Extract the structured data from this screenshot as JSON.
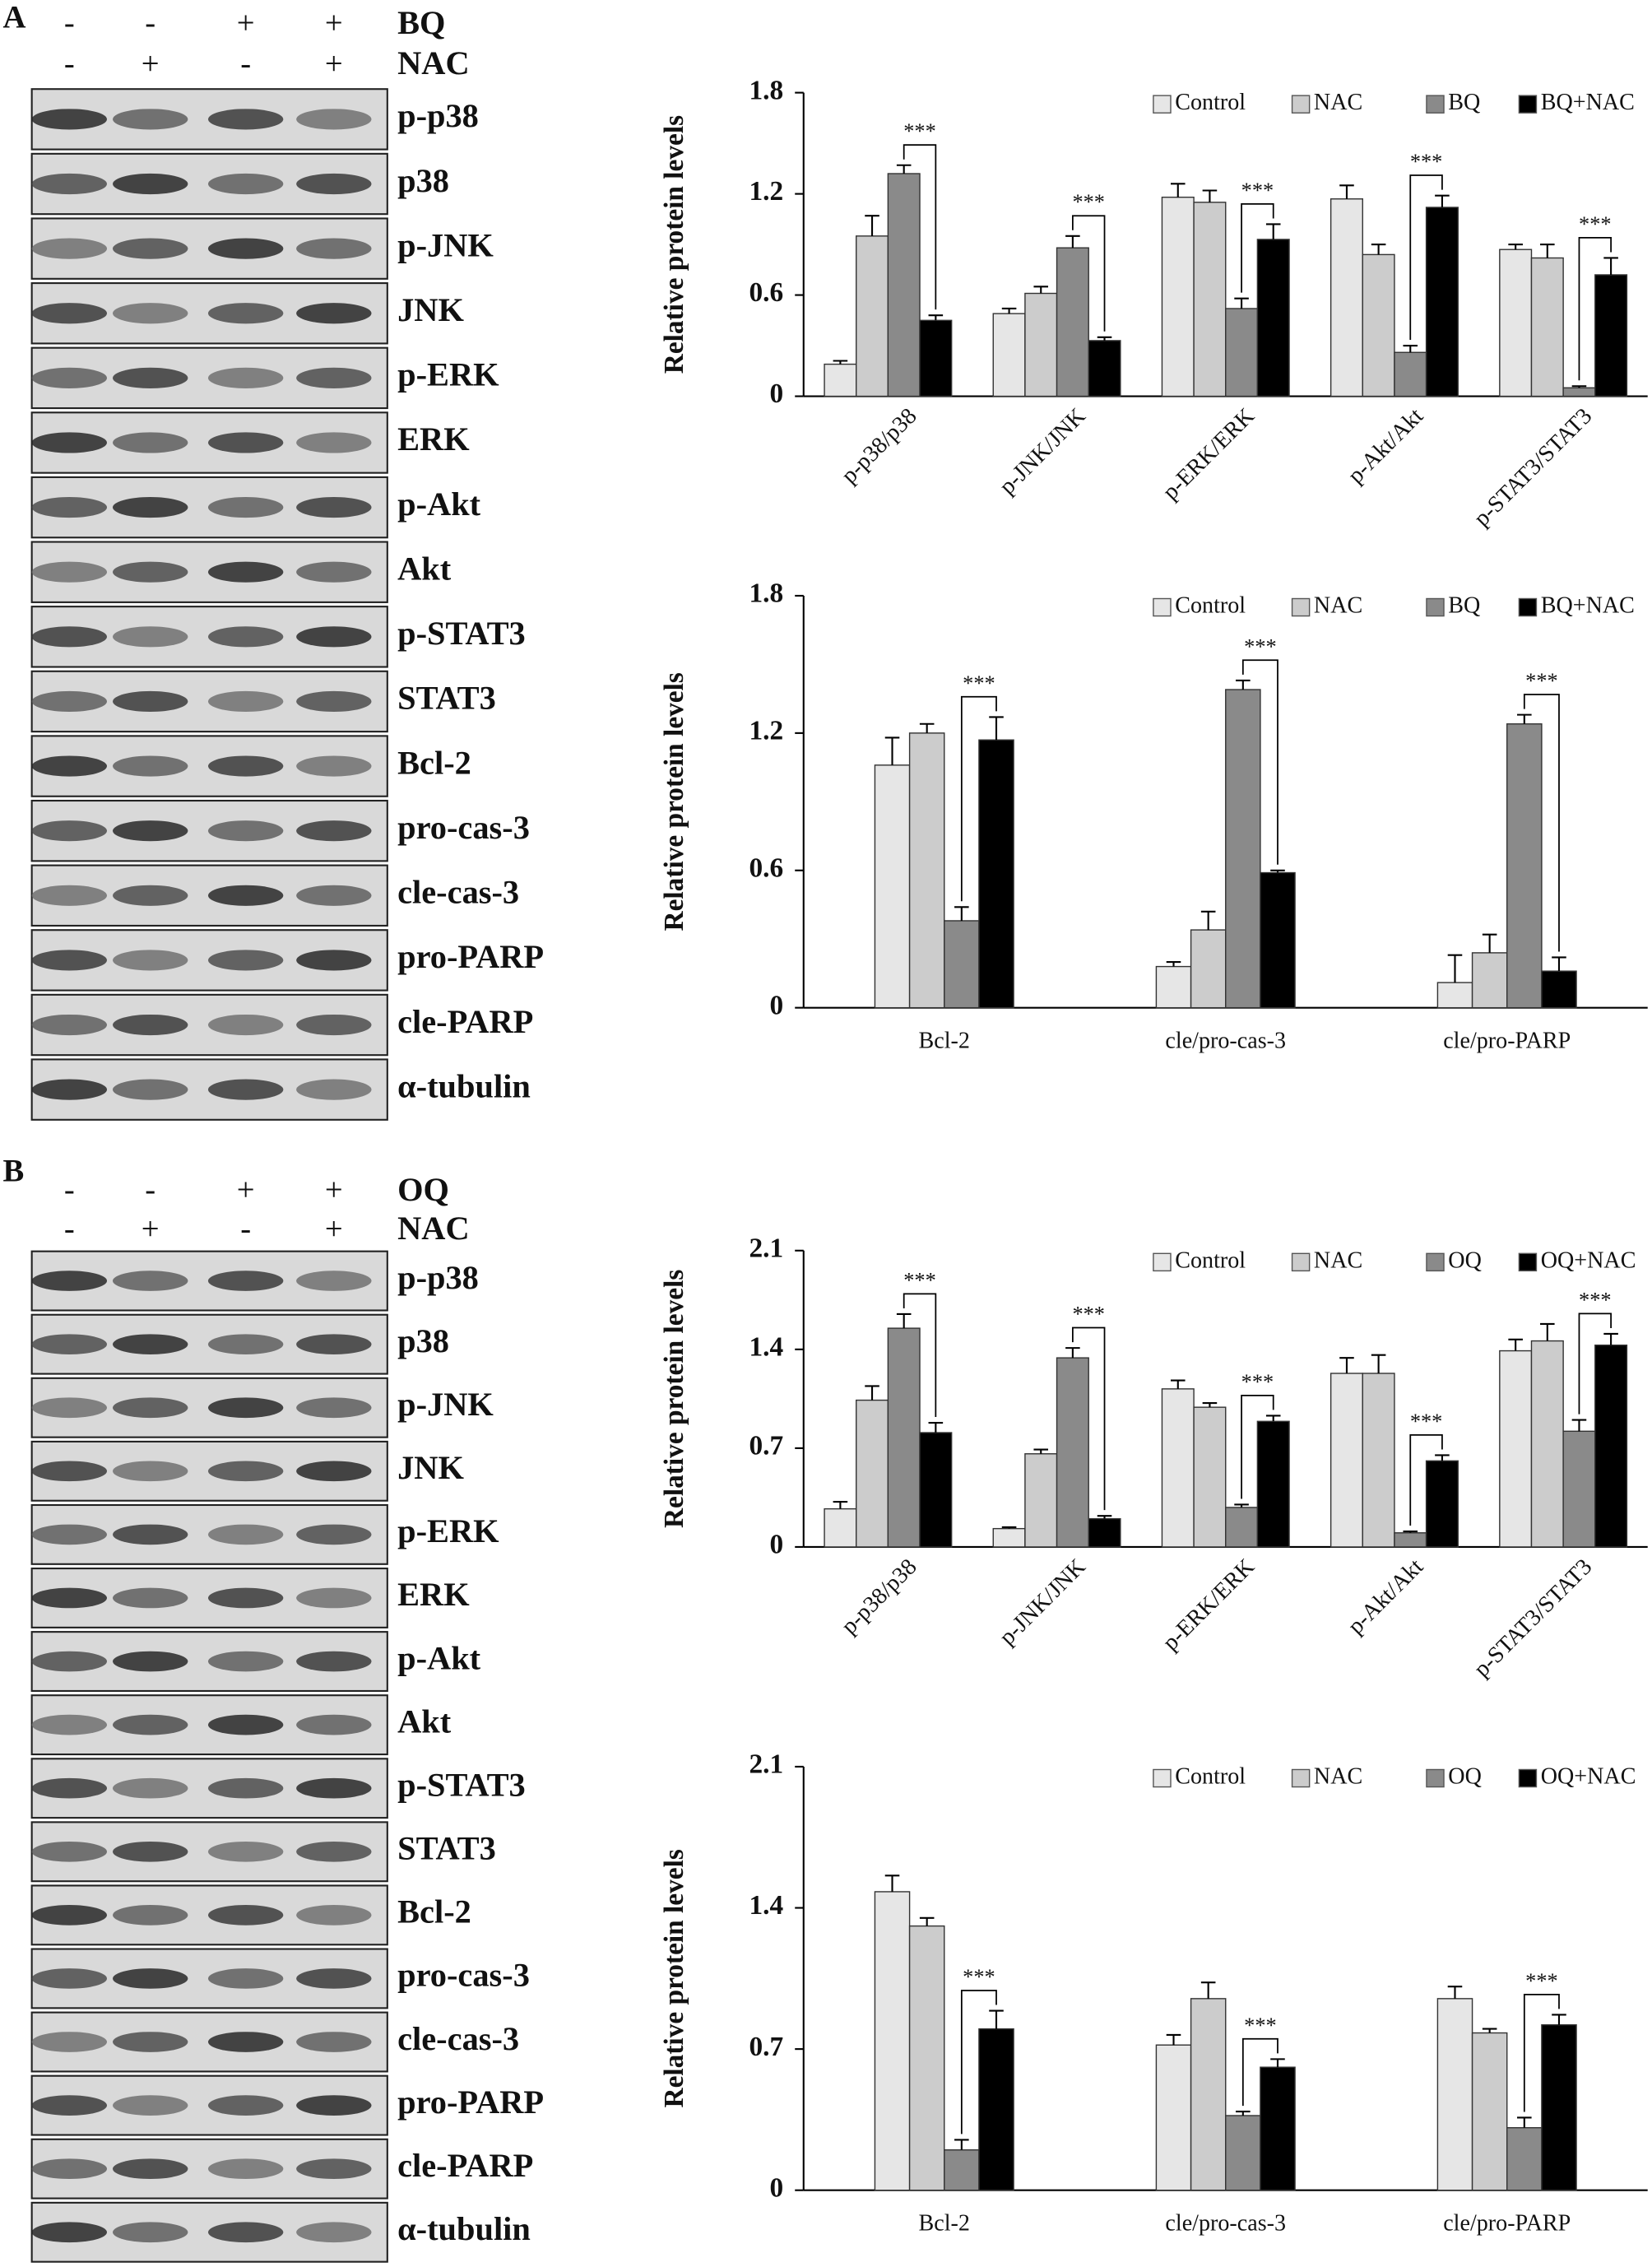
{
  "panels": [
    {
      "label": "A",
      "treatments": [
        {
          "name": "BQ",
          "signs": [
            "-",
            "-",
            "+",
            "+"
          ]
        },
        {
          "name": "NAC",
          "signs": [
            "-",
            "+",
            "-",
            "+"
          ]
        }
      ],
      "blots": [
        "p-p38",
        "p38",
        "p-JNK",
        "JNK",
        "p-ERK",
        "ERK",
        "p-Akt",
        "Akt",
        "p-STAT3",
        "STAT3",
        "Bcl-2",
        "pro-cas-3",
        "cle-cas-3",
        "pro-PARP",
        "cle-PARP",
        "α-tubulin"
      ]
    },
    {
      "label": "B",
      "treatments": [
        {
          "name": "OQ",
          "signs": [
            "-",
            "-",
            "+",
            "+"
          ]
        },
        {
          "name": "NAC",
          "signs": [
            "-",
            "+",
            "-",
            "+"
          ]
        }
      ],
      "blots": [
        "p-p38",
        "p38",
        "p-JNK",
        "JNK",
        "p-ERK",
        "ERK",
        "p-Akt",
        "Akt",
        "p-STAT3",
        "STAT3",
        "Bcl-2",
        "pro-cas-3",
        "cle-cas-3",
        "pro-PARP",
        "cle-PARP",
        "α-tubulin"
      ]
    }
  ],
  "chart_data": [
    {
      "type": "bar",
      "ylabel": "Relative protein levels",
      "ylim": [
        0,
        1.8
      ],
      "yticks": [
        0,
        0.6,
        1.2,
        1.8
      ],
      "grid": false,
      "legend": "top-right",
      "x_label_rotation": -45,
      "categories": [
        "p-p38/p38",
        "p-JNK/JNK",
        "p-ERK/ERK",
        "p-Akt/Akt",
        "p-STAT3/STAT3"
      ],
      "annotations": [
        "***",
        "***",
        "***",
        "***",
        "***"
      ],
      "series": [
        {
          "name": "Control",
          "color": "#e6e6e6",
          "values": [
            0.19,
            0.49,
            1.18,
            1.17,
            0.87
          ],
          "errors": [
            0.02,
            0.03,
            0.08,
            0.08,
            0.03
          ]
        },
        {
          "name": "NAC",
          "color": "#cccccc",
          "values": [
            0.95,
            0.61,
            1.15,
            0.84,
            0.82
          ],
          "errors": [
            0.12,
            0.04,
            0.07,
            0.06,
            0.08
          ]
        },
        {
          "name": "BQ",
          "color": "#8a8a8a",
          "values": [
            1.32,
            0.88,
            0.52,
            0.26,
            0.05
          ],
          "errors": [
            0.05,
            0.07,
            0.06,
            0.04,
            0.01
          ]
        },
        {
          "name": "BQ+NAC",
          "color": "#000000",
          "values": [
            0.45,
            0.33,
            0.93,
            1.12,
            0.72
          ],
          "errors": [
            0.03,
            0.02,
            0.09,
            0.07,
            0.1
          ]
        }
      ]
    },
    {
      "type": "bar",
      "ylabel": "Relative protein levels",
      "ylim": [
        0,
        1.8
      ],
      "yticks": [
        0,
        0.6,
        1.2,
        1.8
      ],
      "grid": false,
      "legend": "top-right",
      "x_label_rotation": 0,
      "categories": [
        "Bcl-2",
        "cle/pro-cas-3",
        "cle/pro-PARP"
      ],
      "annotations": [
        "***",
        "***",
        "***"
      ],
      "series": [
        {
          "name": "Control",
          "color": "#e6e6e6",
          "values": [
            1.06,
            0.18,
            0.11
          ],
          "errors": [
            0.12,
            0.02,
            0.12
          ]
        },
        {
          "name": "NAC",
          "color": "#cccccc",
          "values": [
            1.2,
            0.34,
            0.24
          ],
          "errors": [
            0.04,
            0.08,
            0.08
          ]
        },
        {
          "name": "BQ",
          "color": "#8a8a8a",
          "values": [
            0.38,
            1.39,
            1.24
          ],
          "errors": [
            0.06,
            0.04,
            0.04
          ]
        },
        {
          "name": "BQ+NAC",
          "color": "#000000",
          "values": [
            1.17,
            0.59,
            0.16
          ],
          "errors": [
            0.1,
            0.01,
            0.06
          ]
        }
      ]
    },
    {
      "type": "bar",
      "ylabel": "Relative protein levels",
      "ylim": [
        0,
        2.1
      ],
      "yticks": [
        0,
        0.7,
        1.4,
        2.1
      ],
      "grid": false,
      "legend": "top-right",
      "x_label_rotation": -45,
      "categories": [
        "p-p38/p38",
        "p-JNK/JNK",
        "p-ERK/ERK",
        "p-Akt/Akt",
        "p-STAT3/STAT3"
      ],
      "annotations": [
        "***",
        "***",
        "***",
        "***",
        "***"
      ],
      "series": [
        {
          "name": "Control",
          "color": "#e6e6e6",
          "values": [
            0.27,
            0.13,
            1.12,
            1.23,
            1.39
          ],
          "errors": [
            0.05,
            0.01,
            0.06,
            0.11,
            0.08
          ]
        },
        {
          "name": "NAC",
          "color": "#cccccc",
          "values": [
            1.04,
            0.66,
            0.99,
            1.23,
            1.46
          ],
          "errors": [
            0.1,
            0.03,
            0.03,
            0.13,
            0.12
          ]
        },
        {
          "name": "OQ",
          "color": "#8a8a8a",
          "values": [
            1.55,
            1.34,
            0.28,
            0.1,
            0.82
          ],
          "errors": [
            0.1,
            0.07,
            0.02,
            0.01,
            0.08
          ]
        },
        {
          "name": "OQ+NAC",
          "color": "#000000",
          "values": [
            0.81,
            0.2,
            0.89,
            0.61,
            1.43
          ],
          "errors": [
            0.07,
            0.02,
            0.04,
            0.04,
            0.08
          ]
        }
      ]
    },
    {
      "type": "bar",
      "ylabel": "Relative protein levels",
      "ylim": [
        0,
        2.1
      ],
      "yticks": [
        0,
        0.7,
        1.4,
        2.1
      ],
      "grid": false,
      "legend": "top-right",
      "x_label_rotation": 0,
      "categories": [
        "Bcl-2",
        "cle/pro-cas-3",
        "cle/pro-PARP"
      ],
      "annotations": [
        "***",
        "***",
        "***"
      ],
      "series": [
        {
          "name": "Control",
          "color": "#e6e6e6",
          "values": [
            1.48,
            0.72,
            0.95
          ],
          "errors": [
            0.08,
            0.05,
            0.06
          ]
        },
        {
          "name": "NAC",
          "color": "#cccccc",
          "values": [
            1.31,
            0.95,
            0.78
          ],
          "errors": [
            0.04,
            0.08,
            0.02
          ]
        },
        {
          "name": "OQ",
          "color": "#8a8a8a",
          "values": [
            0.2,
            0.37,
            0.31
          ],
          "errors": [
            0.05,
            0.02,
            0.05
          ]
        },
        {
          "name": "OQ+NAC",
          "color": "#000000",
          "values": [
            0.8,
            0.61,
            0.82
          ],
          "errors": [
            0.09,
            0.04,
            0.05
          ]
        }
      ]
    }
  ]
}
